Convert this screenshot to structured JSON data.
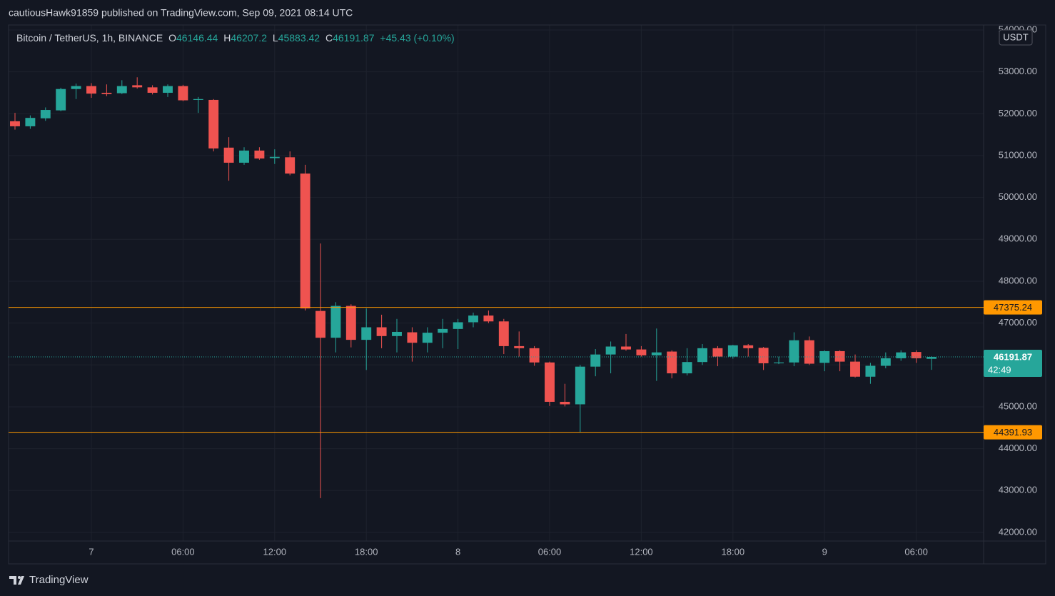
{
  "published": "cautiousHawk91859 published on TradingView.com, Sep 09, 2021 08:14 UTC",
  "brand": "TradingView",
  "chart_data": {
    "type": "candlestick",
    "symbol": "Bitcoin / TetherUS, 1h, BINANCE",
    "legend": {
      "o_label": "O",
      "o": 46146.44,
      "h_label": "H",
      "h": 46207.2,
      "l_label": "L",
      "l": 45883.42,
      "c_label": "C",
      "c": 46191.87,
      "change": "+45.43 (+0.10%)"
    },
    "currency": "USDT",
    "up_color": "#26a69a",
    "down_color": "#ef5350",
    "x": [
      -5,
      -4,
      -3,
      -2,
      -1,
      0,
      1,
      2,
      3,
      4,
      5,
      6,
      7,
      8,
      9,
      10,
      11,
      12,
      13,
      14,
      15,
      16,
      17,
      18,
      19,
      20,
      21,
      22,
      23,
      24,
      25,
      26,
      27,
      28,
      29,
      30,
      31,
      32,
      33,
      34,
      35,
      36,
      37,
      38,
      39,
      40,
      41,
      42,
      43,
      44,
      45,
      46,
      47,
      48,
      49,
      50,
      51,
      52,
      53,
      54,
      55
    ],
    "open": [
      51820,
      51700,
      51890,
      52080,
      52590,
      52660,
      52500,
      52490,
      52680,
      52630,
      52500,
      52660,
      52330,
      52330,
      51190,
      50830,
      51120,
      50940,
      50960,
      50570,
      47290,
      46650,
      47410,
      46600,
      46900,
      46690,
      46780,
      46530,
      46770,
      46860,
      47020,
      47180,
      47040,
      46450,
      46400,
      46060,
      45120,
      45060,
      45960,
      46250,
      46440,
      46370,
      46230,
      46320,
      45800,
      46070,
      46400,
      46200,
      46470,
      46410,
      46040,
      46060,
      46590,
      46050,
      46330,
      46080,
      45720,
      45980,
      46160,
      46310,
      46146.44
    ],
    "high": [
      52020,
      51960,
      52150,
      52620,
      52720,
      52730,
      52700,
      52800,
      52870,
      52680,
      52700,
      52690,
      52400,
      52350,
      51440,
      51200,
      51200,
      51150,
      51100,
      50780,
      48900,
      47500,
      47450,
      47350,
      47200,
      47100,
      46900,
      46900,
      47100,
      47100,
      47250,
      47300,
      47100,
      46800,
      46450,
      46080,
      45550,
      46000,
      46380,
      46560,
      46740,
      46450,
      46870,
      46350,
      46400,
      46500,
      46450,
      46480,
      46500,
      46430,
      46200,
      46780,
      46680,
      46350,
      46350,
      46250,
      46050,
      46300,
      46350,
      46350,
      46207.2
    ],
    "low": [
      51620,
      51640,
      51830,
      52060,
      52350,
      52380,
      52420,
      52470,
      52600,
      52460,
      52400,
      52300,
      52020,
      51100,
      50400,
      50780,
      50900,
      50800,
      50530,
      47300,
      42820,
      46300,
      46420,
      45880,
      46400,
      46300,
      46080,
      46300,
      46400,
      46380,
      46900,
      47000,
      46260,
      46200,
      45980,
      45020,
      45010,
      44390,
      45730,
      45800,
      46340,
      46200,
      45620,
      45680,
      45750,
      46000,
      45970,
      46150,
      46200,
      45880,
      46020,
      45970,
      46000,
      45850,
      45850,
      45700,
      45550,
      45920,
      46100,
      46050,
      45883.42
    ],
    "close": [
      51700,
      51900,
      52090,
      52590,
      52660,
      52480,
      52470,
      52660,
      52630,
      52500,
      52660,
      52320,
      52350,
      51170,
      50830,
      51120,
      50930,
      50970,
      50570,
      47350,
      46650,
      47410,
      46600,
      46900,
      46690,
      46790,
      46530,
      46770,
      46860,
      47020,
      47180,
      47040,
      46450,
      46400,
      46060,
      45120,
      45060,
      45960,
      46250,
      46440,
      46370,
      46230,
      46300,
      45800,
      46070,
      46400,
      46200,
      46470,
      46400,
      46040,
      46060,
      46590,
      46030,
      46330,
      46080,
      45720,
      45980,
      46160,
      46300,
      46160,
      46191.87
    ],
    "xlim": [
      -5.42,
      58.41
    ],
    "xticks": [
      {
        "value": 0,
        "label": "7"
      },
      {
        "value": 6,
        "label": "06:00"
      },
      {
        "value": 12,
        "label": "12:00"
      },
      {
        "value": 18,
        "label": "18:00"
      },
      {
        "value": 24,
        "label": "8"
      },
      {
        "value": 30,
        "label": "06:00"
      },
      {
        "value": 36,
        "label": "12:00"
      },
      {
        "value": 42,
        "label": "18:00"
      },
      {
        "value": 48,
        "label": "9"
      },
      {
        "value": 54,
        "label": "06:00"
      }
    ],
    "ylim": [
      41795,
      54119
    ],
    "yticks": [
      {
        "value": 42000,
        "label": "42000.00"
      },
      {
        "value": 43000,
        "label": "43000.00"
      },
      {
        "value": 44000,
        "label": "44000.00"
      },
      {
        "value": 45000,
        "label": "45000.00"
      },
      {
        "value": 46000,
        "label": "46000.00"
      },
      {
        "value": 47000,
        "label": "47000.00"
      },
      {
        "value": 48000,
        "label": "48000.00"
      },
      {
        "value": 49000,
        "label": "49000.00"
      },
      {
        "value": 50000,
        "label": "50000.00"
      },
      {
        "value": 51000,
        "label": "51000.00"
      },
      {
        "value": 52000,
        "label": "52000.00"
      },
      {
        "value": 53000,
        "label": "53000.00"
      },
      {
        "value": 54000,
        "label": "54000.00"
      }
    ],
    "grid": true,
    "hlines": [
      {
        "value": 47375.24,
        "color": "#ff9800"
      },
      {
        "value": 44391.93,
        "color": "#ff9800"
      }
    ],
    "last_price": {
      "value": 46191.87,
      "countdown": "42:49",
      "color": "#26a69a"
    }
  }
}
